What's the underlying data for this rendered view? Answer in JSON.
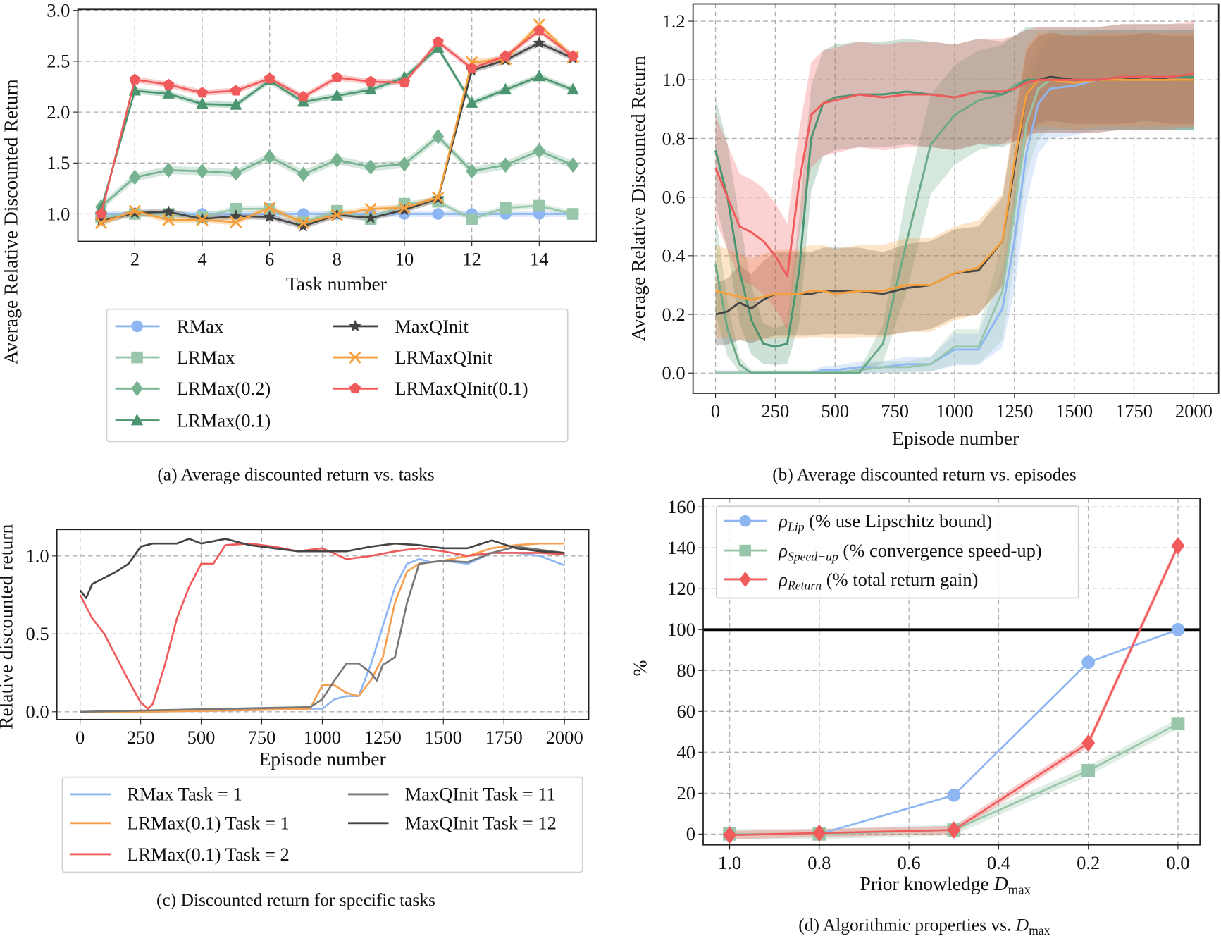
{
  "chart_data": [
    {
      "type": "line",
      "caption": "(a) Average discounted return vs. tasks",
      "xlabel": "Task number",
      "ylabel": "Average Relative Discounted Return",
      "xlim": [
        0.31,
        15.7
      ],
      "ylim": [
        0.73,
        3.01
      ],
      "xticks": [
        {
          "v": 2,
          "t": "2"
        },
        {
          "v": 4,
          "t": "4"
        },
        {
          "v": 6,
          "t": "6"
        },
        {
          "v": 8,
          "t": "8"
        },
        {
          "v": 10,
          "t": "10"
        },
        {
          "v": 12,
          "t": "12"
        },
        {
          "v": 14,
          "t": "14"
        }
      ],
      "yticks": [
        {
          "v": 1.0,
          "t": "1.0"
        },
        {
          "v": 1.5,
          "t": "1.5"
        },
        {
          "v": 2.0,
          "t": "2.0"
        },
        {
          "v": 2.5,
          "t": "2.5"
        },
        {
          "v": 3.0,
          "t": "3.0"
        }
      ],
      "grid": true,
      "legend": "below",
      "x": [
        1,
        2,
        3,
        4,
        5,
        6,
        7,
        8,
        9,
        10,
        11,
        12,
        13,
        14,
        15
      ],
      "series": [
        {
          "name": "RMax",
          "color": "#8db6f2",
          "marker": "circle",
          "band": 0.03,
          "values": [
            1.0,
            1.0,
            1.0,
            1.0,
            1.0,
            1.0,
            1.0,
            1.0,
            1.0,
            1.0,
            1.0,
            1.0,
            1.0,
            1.0,
            1.0
          ]
        },
        {
          "name": "LRMax",
          "color": "#98c6aa",
          "marker": "square",
          "band": 0.03,
          "values": [
            0.97,
            1.0,
            1.0,
            0.97,
            1.05,
            1.05,
            0.92,
            1.03,
            0.95,
            1.1,
            1.12,
            0.95,
            1.06,
            1.08,
            1.0
          ]
        },
        {
          "name": "LRMax(0.2)",
          "color": "#78b391",
          "marker": "diamond",
          "band": 0.04,
          "values": [
            1.07,
            1.36,
            1.43,
            1.42,
            1.4,
            1.56,
            1.39,
            1.53,
            1.46,
            1.49,
            1.76,
            1.42,
            1.48,
            1.62,
            1.48
          ]
        },
        {
          "name": "LRMax(0.1)",
          "color": "#4a9570",
          "marker": "triangle",
          "band": 0.03,
          "values": [
            1.05,
            2.21,
            2.18,
            2.08,
            2.07,
            2.31,
            2.1,
            2.16,
            2.22,
            2.34,
            2.63,
            2.09,
            2.22,
            2.35,
            2.22
          ]
        },
        {
          "name": "MaxQInit",
          "color": "#454545",
          "marker": "star",
          "band": 0.03,
          "values": [
            0.93,
            1.01,
            1.02,
            0.95,
            0.98,
            0.97,
            0.88,
            0.99,
            0.96,
            1.04,
            1.15,
            2.41,
            2.51,
            2.68,
            2.53
          ]
        },
        {
          "name": "LRMaxQInit",
          "color": "#f5a03c",
          "marker": "x",
          "band": 0.03,
          "values": [
            0.91,
            1.03,
            0.94,
            0.94,
            0.92,
            1.06,
            0.91,
            0.99,
            1.05,
            1.06,
            1.16,
            2.49,
            2.52,
            2.86,
            2.54
          ]
        },
        {
          "name": "LRMaxQInit(0.1)",
          "color": "#f05a5a",
          "marker": "pentagon",
          "band": 0.03,
          "values": [
            1.0,
            2.32,
            2.27,
            2.19,
            2.21,
            2.33,
            2.15,
            2.34,
            2.3,
            2.29,
            2.69,
            2.43,
            2.55,
            2.8,
            2.55
          ]
        }
      ]
    },
    {
      "type": "line",
      "caption": "(b) Average discounted return vs. episodes",
      "xlabel": "Episode number",
      "ylabel": "Average Relative Discounted Return",
      "xlim": [
        -94,
        2104
      ],
      "ylim": [
        -0.069,
        1.259
      ],
      "xticks": [
        {
          "v": 0,
          "t": "0"
        },
        {
          "v": 250,
          "t": "250"
        },
        {
          "v": 500,
          "t": "500"
        },
        {
          "v": 750,
          "t": "750"
        },
        {
          "v": 1000,
          "t": "1000"
        },
        {
          "v": 1250,
          "t": "1250"
        },
        {
          "v": 1500,
          "t": "1500"
        },
        {
          "v": 1750,
          "t": "1750"
        },
        {
          "v": 2000,
          "t": "2000"
        }
      ],
      "yticks": [
        {
          "v": 0.0,
          "t": "0.0"
        },
        {
          "v": 0.2,
          "t": "0.2"
        },
        {
          "v": 0.4,
          "t": "0.4"
        },
        {
          "v": 0.6,
          "t": "0.6"
        },
        {
          "v": 0.8,
          "t": "0.8"
        },
        {
          "v": 1.0,
          "t": "1.0"
        },
        {
          "v": 1.2,
          "t": "1.2"
        }
      ],
      "grid": true,
      "x": [
        0,
        50,
        100,
        150,
        200,
        250,
        300,
        350,
        400,
        450,
        500,
        600,
        700,
        800,
        900,
        1000,
        1100,
        1200,
        1250,
        1300,
        1350,
        1400,
        1500,
        1600,
        1700,
        1800,
        1900,
        2000
      ],
      "series": [
        {
          "name": "RMax",
          "color": "#8db6f2",
          "band": 0.17,
          "values": [
            0,
            0,
            0,
            0,
            0,
            0,
            0,
            0,
            0,
            0.01,
            0.01,
            0.02,
            0.02,
            0.03,
            0.03,
            0.08,
            0.08,
            0.22,
            0.45,
            0.75,
            0.92,
            0.97,
            0.98,
            1.0,
            1.0,
            1.0,
            1.0,
            1.0
          ]
        },
        {
          "name": "LRMax",
          "color": "#98c6aa",
          "band": 0.17,
          "values": [
            0,
            0,
            0,
            0,
            0,
            0,
            0,
            0,
            0,
            0,
            0,
            0.01,
            0.02,
            0.02,
            0.03,
            0.09,
            0.09,
            0.28,
            0.55,
            0.85,
            0.97,
            1.0,
            1.0,
            1.0,
            1.0,
            1.0,
            1.0,
            1.0
          ]
        },
        {
          "name": "LRMax(0.2)",
          "color": "#6aaa86",
          "band": 0.17,
          "values": [
            0.37,
            0.15,
            0.03,
            0,
            0,
            0,
            0,
            0,
            0,
            0,
            0,
            0,
            0.1,
            0.45,
            0.78,
            0.88,
            0.93,
            0.95,
            0.98,
            1.0,
            1.0,
            1.0,
            1.0,
            1.0,
            1.0,
            1.0,
            1.0,
            1.0
          ]
        },
        {
          "name": "LRMax(0.1)",
          "color": "#4a9570",
          "band": 0.18,
          "values": [
            0.76,
            0.6,
            0.35,
            0.18,
            0.1,
            0.09,
            0.1,
            0.35,
            0.8,
            0.92,
            0.94,
            0.95,
            0.95,
            0.96,
            0.95,
            0.94,
            0.96,
            0.95,
            0.97,
            1.0,
            1.0,
            1.0,
            1.0,
            1.0,
            1.01,
            1.01,
            1.01,
            1.01
          ]
        },
        {
          "name": "MaxQInit",
          "color": "#454545",
          "band": 0.15,
          "values": [
            0.2,
            0.21,
            0.24,
            0.22,
            0.25,
            0.27,
            0.27,
            0.27,
            0.27,
            0.28,
            0.28,
            0.28,
            0.27,
            0.29,
            0.3,
            0.34,
            0.35,
            0.45,
            0.7,
            0.95,
            1.0,
            1.01,
            1.0,
            1.0,
            1.0,
            1.01,
            1.0,
            1.0
          ]
        },
        {
          "name": "LRMaxQInit",
          "color": "#f5a03c",
          "band": 0.16,
          "values": [
            0.28,
            0.27,
            0.26,
            0.25,
            0.26,
            0.27,
            0.27,
            0.27,
            0.28,
            0.28,
            0.27,
            0.28,
            0.28,
            0.3,
            0.3,
            0.34,
            0.36,
            0.45,
            0.72,
            0.95,
            1.0,
            1.0,
            0.99,
            1.0,
            1.0,
            1.0,
            1.0,
            1.0
          ]
        },
        {
          "name": "LRMaxQInit(0.1)",
          "color": "#f05a5a",
          "band": 0.18,
          "values": [
            0.7,
            0.6,
            0.5,
            0.48,
            0.45,
            0.4,
            0.33,
            0.65,
            0.88,
            0.92,
            0.93,
            0.95,
            0.94,
            0.95,
            0.95,
            0.94,
            0.96,
            0.96,
            0.97,
            0.99,
            1.0,
            1.0,
            1.0,
            1.0,
            1.01,
            1.01,
            1.01,
            1.02
          ]
        }
      ]
    },
    {
      "type": "line",
      "caption": "(c) Discounted return for specific tasks",
      "xlabel": "Episode number",
      "ylabel": "Relative discounted return",
      "xlim": [
        -96,
        2100
      ],
      "ylim": [
        -0.05,
        1.17
      ],
      "xticks": [
        {
          "v": 0,
          "t": "0"
        },
        {
          "v": 250,
          "t": "250"
        },
        {
          "v": 500,
          "t": "500"
        },
        {
          "v": 750,
          "t": "750"
        },
        {
          "v": 1000,
          "t": "1000"
        },
        {
          "v": 1250,
          "t": "1250"
        },
        {
          "v": 1500,
          "t": "1500"
        },
        {
          "v": 1750,
          "t": "1750"
        },
        {
          "v": 2000,
          "t": "2000"
        }
      ],
      "yticks": [
        {
          "v": 0.0,
          "t": "0.0"
        },
        {
          "v": 0.5,
          "t": "0.5"
        },
        {
          "v": 1.0,
          "t": "1.0"
        }
      ],
      "grid": true,
      "legend": "below",
      "series": [
        {
          "name": "RMax Task = 1",
          "color": "#8db6f2",
          "x": [
            0,
            250,
            700,
            950,
            1000,
            1050,
            1100,
            1150,
            1200,
            1250,
            1300,
            1350,
            1400,
            1450,
            1500,
            1600,
            1700,
            1800,
            1900,
            2000
          ],
          "values": [
            0,
            0,
            0.01,
            0.02,
            0.02,
            0.08,
            0.1,
            0.1,
            0.3,
            0.55,
            0.8,
            0.95,
            0.98,
            0.96,
            0.97,
            0.95,
            1.02,
            1.02,
            1.0,
            0.94
          ]
        },
        {
          "name": "LRMax(0.1) Task = 1",
          "color": "#f5a050",
          "x": [
            0,
            250,
            700,
            950,
            1000,
            1050,
            1100,
            1150,
            1200,
            1250,
            1300,
            1350,
            1400,
            1450,
            1500,
            1600,
            1700,
            1800,
            1900,
            2000
          ],
          "values": [
            0,
            0,
            0.01,
            0.02,
            0.17,
            0.17,
            0.12,
            0.1,
            0.2,
            0.35,
            0.7,
            0.9,
            0.95,
            0.96,
            0.97,
            1.0,
            1.05,
            1.07,
            1.08,
            1.08
          ]
        },
        {
          "name": "LRMax(0.1) Task = 2",
          "color": "#f05a5a",
          "x": [
            0,
            50,
            100,
            150,
            200,
            250,
            280,
            300,
            350,
            400,
            450,
            500,
            550,
            600,
            700,
            800,
            900,
            1000,
            1100,
            1200,
            1300,
            1400,
            1500,
            1600,
            1700,
            1800,
            1900,
            2000
          ],
          "values": [
            0.75,
            0.6,
            0.5,
            0.35,
            0.2,
            0.06,
            0.02,
            0.05,
            0.3,
            0.6,
            0.8,
            0.95,
            0.95,
            1.07,
            1.08,
            1.06,
            1.03,
            1.05,
            0.98,
            1.0,
            1.03,
            1.05,
            1.03,
            1.0,
            1.02,
            1.02,
            1.02,
            1.01
          ]
        },
        {
          "name": "MaxQInit Task = 11",
          "color": "#777777",
          "x": [
            0,
            950,
            1000,
            1050,
            1100,
            1150,
            1200,
            1225,
            1250,
            1300,
            1350,
            1400,
            1500,
            1600,
            1700,
            1800,
            1900,
            2000
          ],
          "values": [
            0,
            0.03,
            0.08,
            0.2,
            0.31,
            0.31,
            0.25,
            0.2,
            0.3,
            0.35,
            0.7,
            0.95,
            0.97,
            0.96,
            1.02,
            1.06,
            1.04,
            1.02
          ]
        },
        {
          "name": "MaxQInit Task = 12",
          "color": "#444444",
          "x": [
            0,
            25,
            50,
            100,
            150,
            200,
            250,
            300,
            400,
            450,
            500,
            600,
            700,
            800,
            900,
            1000,
            1100,
            1200,
            1300,
            1400,
            1500,
            1600,
            1700,
            1800,
            1900,
            2000
          ],
          "values": [
            0.78,
            0.73,
            0.82,
            0.86,
            0.9,
            0.95,
            1.06,
            1.08,
            1.08,
            1.11,
            1.08,
            1.11,
            1.07,
            1.05,
            1.03,
            1.03,
            1.03,
            1.06,
            1.08,
            1.07,
            1.05,
            1.05,
            1.1,
            1.05,
            1.03,
            1.02
          ]
        }
      ]
    },
    {
      "type": "line",
      "caption": "(d) Algorithmic properties vs. ",
      "caption_var": "D",
      "caption_sub": "max",
      "xlabel": "Prior knowledge ",
      "xlabel_var": "D",
      "xlabel_sub": "max",
      "ylabel": "%",
      "xlim": [
        1.059,
        -0.049
      ],
      "ylim": [
        -5.3,
        164.2
      ],
      "xticks": [
        {
          "v": 1.0,
          "t": "1.0"
        },
        {
          "v": 0.8,
          "t": "0.8"
        },
        {
          "v": 0.6,
          "t": "0.6"
        },
        {
          "v": 0.4,
          "t": "0.4"
        },
        {
          "v": 0.2,
          "t": "0.2"
        },
        {
          "v": 0.0,
          "t": "0.0"
        }
      ],
      "yticks": [
        {
          "v": 0,
          "t": "0"
        },
        {
          "v": 20,
          "t": "20"
        },
        {
          "v": 40,
          "t": "40"
        },
        {
          "v": 60,
          "t": "60"
        },
        {
          "v": 80,
          "t": "80"
        },
        {
          "v": 100,
          "t": "100"
        },
        {
          "v": 120,
          "t": "120"
        },
        {
          "v": 140,
          "t": "140"
        },
        {
          "v": 160,
          "t": "160"
        }
      ],
      "reference_line": 100,
      "grid": true,
      "legend": "top-left",
      "x": [
        1.0,
        0.8,
        0.5,
        0.2,
        0.0
      ],
      "series": [
        {
          "symbol": "ρ",
          "sub": "Lip",
          "desc": "(% use Lipschitz bound)",
          "color": "#8db6f2",
          "marker": "circle",
          "band": 0.5,
          "values": [
            0,
            0,
            19,
            84,
            100
          ]
        },
        {
          "symbol": "ρ",
          "sub": "Speed−up",
          "desc": "(% convergence speed-up)",
          "color": "#98c6aa",
          "marker": "square",
          "band": 2.5,
          "values": [
            0,
            0,
            2,
            31,
            54
          ]
        },
        {
          "symbol": "ρ",
          "sub": "Return",
          "desc": "(% total return gain)",
          "color": "#f05a5a",
          "marker": "diamond",
          "band": 2,
          "values": [
            -0.5,
            0.5,
            2,
            44.5,
            141
          ]
        }
      ]
    }
  ]
}
